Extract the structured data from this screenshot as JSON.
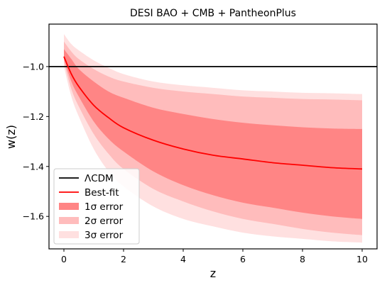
{
  "chart_data": {
    "type": "line",
    "title": "DESI BAO + CMB + PantheonPlus",
    "xlabel": "z",
    "ylabel": "w(z)",
    "xlim": [
      -0.5,
      10.5
    ],
    "ylim": [
      -1.73,
      -0.83
    ],
    "xticks": [
      0,
      2,
      4,
      6,
      8,
      10
    ],
    "xtick_labels": [
      "0",
      "2",
      "4",
      "6",
      "8",
      "10"
    ],
    "yticks": [
      -1.0,
      -1.2,
      -1.4,
      -1.6
    ],
    "ytick_labels": [
      "−1.0",
      "−1.2",
      "−1.4",
      "−1.6"
    ],
    "grid": false,
    "legend_position": "lower-left",
    "lcdm": {
      "name": "ΛCDM",
      "y": -1.0,
      "color": "#000000"
    },
    "best_fit": {
      "name": "Best-fit",
      "color": "#ff0000",
      "x": [
        0,
        0.25,
        0.5,
        1,
        1.5,
        2,
        3,
        4,
        5,
        6,
        7,
        8,
        9,
        10
      ],
      "y": [
        -0.96,
        -1.03,
        -1.08,
        -1.155,
        -1.205,
        -1.245,
        -1.295,
        -1.33,
        -1.355,
        -1.37,
        -1.385,
        -1.395,
        -1.405,
        -1.41
      ]
    },
    "bands": [
      {
        "name": "3σ error",
        "color": "#ffe0e0",
        "x": [
          0,
          0.25,
          0.5,
          1,
          1.5,
          2,
          3,
          4,
          5,
          6,
          7,
          8,
          9,
          10
        ],
        "lower": [
          -1.0,
          -1.12,
          -1.2,
          -1.33,
          -1.42,
          -1.48,
          -1.56,
          -1.61,
          -1.64,
          -1.665,
          -1.68,
          -1.69,
          -1.7,
          -1.705
        ],
        "upper": [
          -0.87,
          -0.91,
          -0.935,
          -0.975,
          -1.005,
          -1.03,
          -1.06,
          -1.075,
          -1.085,
          -1.095,
          -1.1,
          -1.105,
          -1.107,
          -1.11
        ]
      },
      {
        "name": "2σ error",
        "color": "#ffbcbc",
        "x": [
          0,
          0.25,
          0.5,
          1,
          1.5,
          2,
          3,
          4,
          5,
          6,
          7,
          8,
          9,
          10
        ],
        "lower": [
          -0.98,
          -1.09,
          -1.16,
          -1.27,
          -1.35,
          -1.41,
          -1.49,
          -1.54,
          -1.58,
          -1.61,
          -1.63,
          -1.65,
          -1.665,
          -1.675
        ],
        "upper": [
          -0.9,
          -0.94,
          -0.97,
          -1.01,
          -1.04,
          -1.06,
          -1.085,
          -1.1,
          -1.11,
          -1.12,
          -1.125,
          -1.13,
          -1.132,
          -1.135
        ]
      },
      {
        "name": "1σ error",
        "color": "#ff8585",
        "x": [
          0,
          0.25,
          0.5,
          1,
          1.5,
          2,
          3,
          4,
          5,
          6,
          7,
          8,
          9,
          10
        ],
        "lower": [
          -0.97,
          -1.06,
          -1.12,
          -1.22,
          -1.29,
          -1.34,
          -1.42,
          -1.475,
          -1.515,
          -1.545,
          -1.565,
          -1.585,
          -1.6,
          -1.61
        ],
        "upper": [
          -0.93,
          -0.97,
          -1.01,
          -1.06,
          -1.1,
          -1.125,
          -1.165,
          -1.19,
          -1.21,
          -1.225,
          -1.235,
          -1.243,
          -1.248,
          -1.25
        ]
      }
    ]
  }
}
